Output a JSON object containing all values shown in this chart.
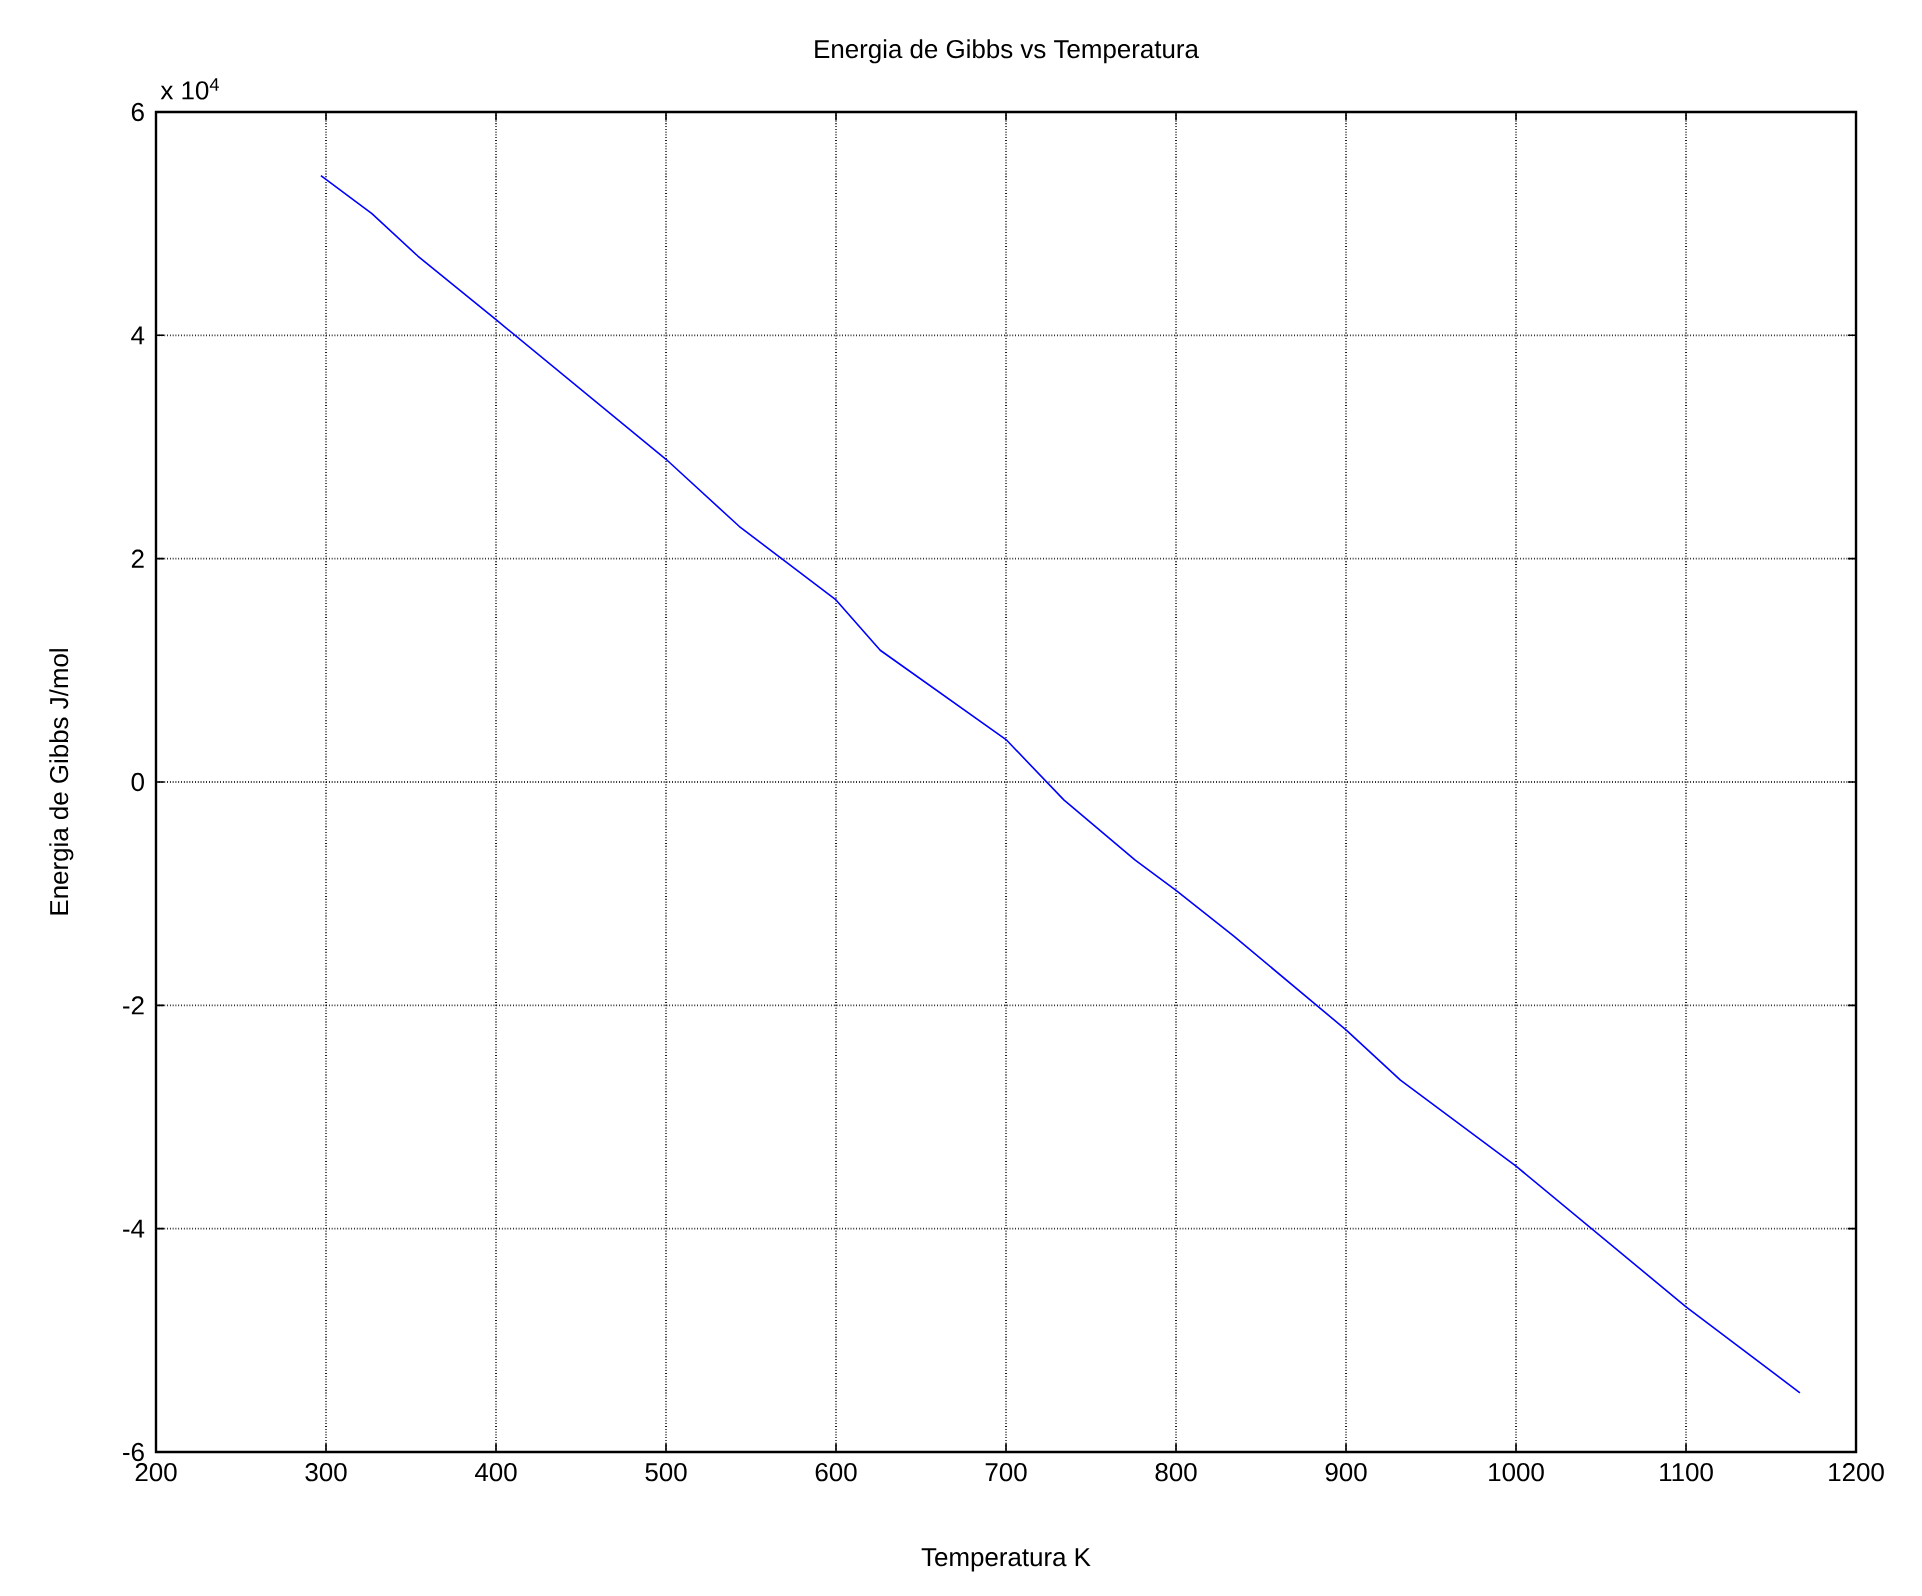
{
  "chart_data": {
    "type": "line",
    "title": "Energia de Gibbs vs Temperatura",
    "xlabel": "Temperatura K",
    "ylabel": "Energia de Gibbs J/mol",
    "annotations": [
      "x 10$^{4}$"
    ],
    "xlim": [
      200,
      1200
    ],
    "xticks": [
      200,
      300,
      400,
      500,
      600,
      700,
      800,
      900,
      1000,
      1100,
      1200
    ],
    "ylim": [
      -6,
      6
    ],
    "yticks": [
      -6,
      -4,
      -2,
      0,
      2,
      4,
      6
    ],
    "grid": true,
    "line_style": "solid",
    "marker": "none",
    "series": [
      {
        "color": "#0000ff",
        "x": [
          297,
          327,
          354,
          400,
          500,
          543,
          600,
          626,
          700,
          734,
          776,
          800,
          834,
          900,
          932,
          1000,
          1100,
          1167
        ],
        "values": [
          5.43,
          5.09,
          4.71,
          4.14,
          2.89,
          2.29,
          1.63,
          1.18,
          0.38,
          -0.16,
          -0.7,
          -0.97,
          -1.38,
          -2.22,
          -2.67,
          -3.44,
          -4.7,
          -5.47
        ]
      }
    ]
  }
}
